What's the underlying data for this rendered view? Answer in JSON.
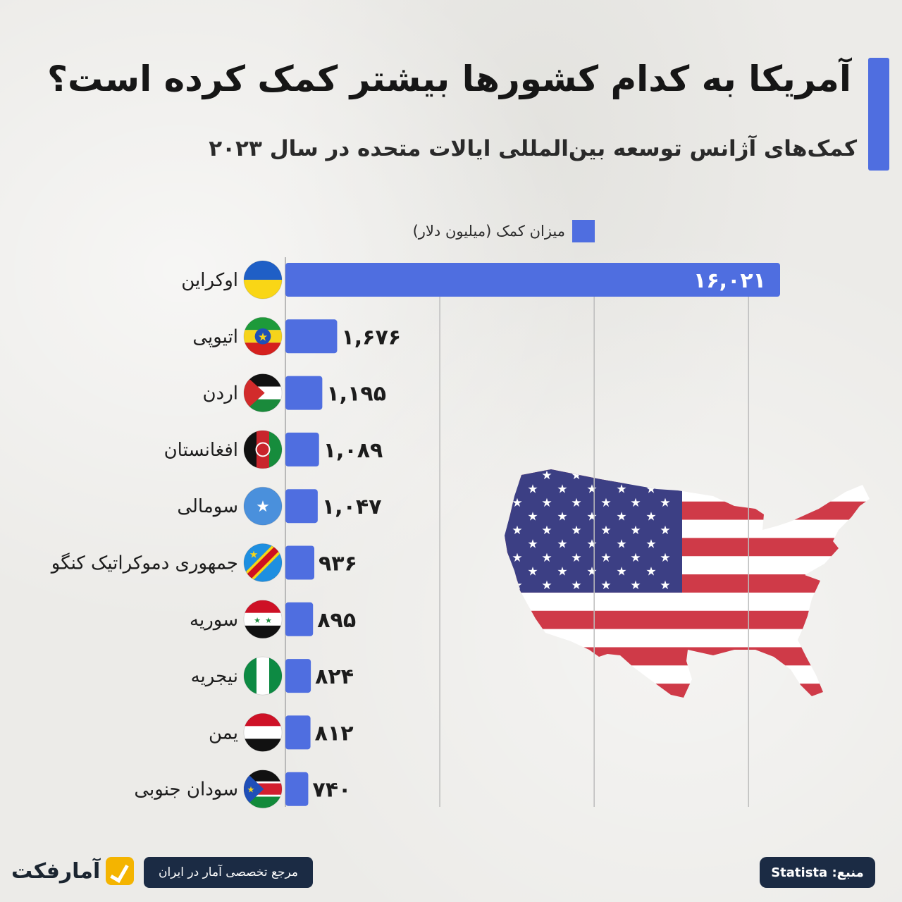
{
  "header": {
    "title": "آمریکا به کدام کشورها بیشتر کمک کرده است؟",
    "subtitle": "کمک‌های آژانس توسعه بین‌المللی ایالات متحده در سال ۲۰۲۳"
  },
  "colors": {
    "accent": "#4f6ee0",
    "pill_background": "#1b2b44",
    "brand_yellow": "#f4b400"
  },
  "chart_data": {
    "type": "bar",
    "orientation": "horizontal",
    "legend": "میزان کمک (میلیون دلار)",
    "legend_placement": "top",
    "grid": true,
    "xlim": [
      0,
      21000
    ],
    "categories": [
      "اوکراین",
      "اتیوپی",
      "اردن",
      "افغانستان",
      "سومالی",
      "جمهوری دموکراتیک کنگو",
      "سوریه",
      "نیجریه",
      "یمن",
      "سودان جنوبی"
    ],
    "values": [
      16021,
      1676,
      1195,
      1089,
      1047,
      936,
      895,
      824,
      812,
      740
    ],
    "value_labels": [
      "۱۶,۰۲۱",
      "۱,۶۷۶",
      "۱,۱۹۵",
      "۱,۰۸۹",
      "۱,۰۴۷",
      "۹۳۶",
      "۸۹۵",
      "۸۲۴",
      "۸۱۲",
      "۷۴۰"
    ],
    "flag_icons": [
      "ukraine-flag-icon",
      "ethiopia-flag-icon",
      "jordan-flag-icon",
      "afghanistan-flag-icon",
      "somalia-flag-icon",
      "dr-congo-flag-icon",
      "syria-flag-icon",
      "nigeria-flag-icon",
      "yemen-flag-icon",
      "south-sudan-flag-icon"
    ]
  },
  "footer": {
    "brand": "آمارفکت",
    "tagline": "مرجع تخصصی آمار در ایران",
    "source": "منبع: Statista"
  }
}
